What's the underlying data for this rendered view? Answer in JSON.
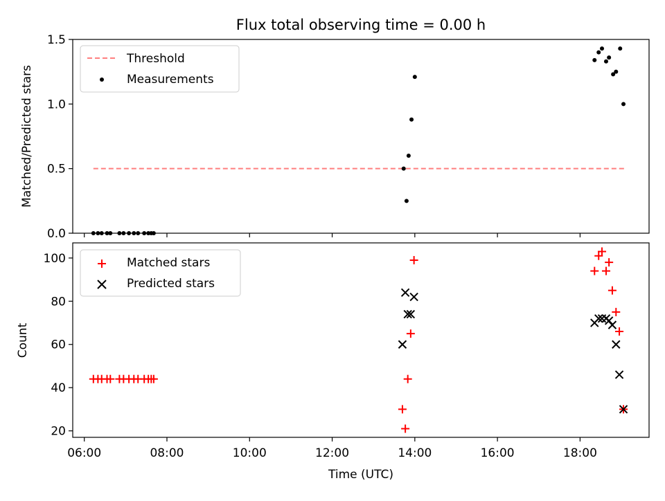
{
  "chart_data": [
    {
      "type": "scatter",
      "title": "Flux total observing time = 0.00 h",
      "xlabel": "",
      "ylabel": "Matched/Predicted stars",
      "xlim": [
        5.72,
        19.67
      ],
      "ylim": [
        0.0,
        1.5
      ],
      "yticks": [
        0.0,
        0.5,
        1.0,
        1.5
      ],
      "ytick_labels": [
        "0.0",
        "0.5",
        "1.0",
        "1.5"
      ],
      "grid": false,
      "legend_position": "top-left",
      "series": [
        {
          "name": "Threshold",
          "kind": "dashed-line",
          "color": "#ff7f7f",
          "x": [
            6.22,
            19.07
          ],
          "y": [
            0.5,
            0.5
          ]
        },
        {
          "name": "Measurements",
          "kind": "scatter",
          "marker": "dot",
          "color": "#000000",
          "x": [
            6.22,
            6.33,
            6.42,
            6.55,
            6.63,
            6.85,
            6.95,
            7.08,
            7.2,
            7.3,
            7.45,
            7.55,
            7.62,
            7.68,
            13.73,
            13.8,
            13.85,
            13.92,
            14.0,
            18.35,
            18.45,
            18.53,
            18.63,
            18.7,
            18.8,
            18.87,
            18.97,
            19.05
          ],
          "y": [
            0.0,
            0.0,
            0.0,
            0.0,
            0.0,
            0.0,
            0.0,
            0.0,
            0.0,
            0.0,
            0.0,
            0.0,
            0.0,
            0.0,
            0.5,
            0.25,
            0.6,
            0.88,
            1.21,
            1.34,
            1.4,
            1.43,
            1.33,
            1.36,
            1.23,
            1.25,
            1.43,
            1.0
          ]
        }
      ]
    },
    {
      "type": "scatter",
      "title": "",
      "xlabel": "Time (UTC)",
      "ylabel": "Count",
      "xlim": [
        5.72,
        19.67
      ],
      "ylim": [
        17,
        107
      ],
      "yticks": [
        20,
        40,
        60,
        80,
        100
      ],
      "ytick_labels": [
        "20",
        "40",
        "60",
        "80",
        "100"
      ],
      "xticks": [
        6,
        8,
        10,
        12,
        14,
        16,
        18
      ],
      "xtick_labels": [
        "06:00",
        "08:00",
        "10:00",
        "12:00",
        "14:00",
        "16:00",
        "18:00"
      ],
      "grid": false,
      "legend_position": "top-left",
      "series": [
        {
          "name": "Matched stars",
          "kind": "scatter",
          "marker": "plus",
          "color": "#ff0000",
          "x": [
            6.22,
            6.33,
            6.42,
            6.55,
            6.63,
            6.85,
            6.95,
            7.08,
            7.2,
            7.3,
            7.45,
            7.55,
            7.62,
            7.68,
            13.7,
            13.77,
            13.83,
            13.9,
            13.98,
            18.35,
            18.45,
            18.53,
            18.63,
            18.7,
            18.78,
            18.87,
            18.95,
            19.05
          ],
          "y": [
            44,
            44,
            44,
            44,
            44,
            44,
            44,
            44,
            44,
            44,
            44,
            44,
            44,
            44,
            30,
            21,
            44,
            65,
            99,
            94,
            101,
            103,
            94,
            98,
            85,
            75,
            66,
            30
          ]
        },
        {
          "name": "Predicted stars",
          "kind": "scatter",
          "marker": "x",
          "color": "#000000",
          "x": [
            13.7,
            13.77,
            13.83,
            13.9,
            13.98,
            18.35,
            18.45,
            18.53,
            18.63,
            18.7,
            18.78,
            18.87,
            18.95,
            19.05
          ],
          "y": [
            60,
            84,
            74,
            74,
            82,
            70,
            72,
            72,
            72,
            71,
            69,
            60,
            46,
            30
          ]
        }
      ]
    }
  ]
}
